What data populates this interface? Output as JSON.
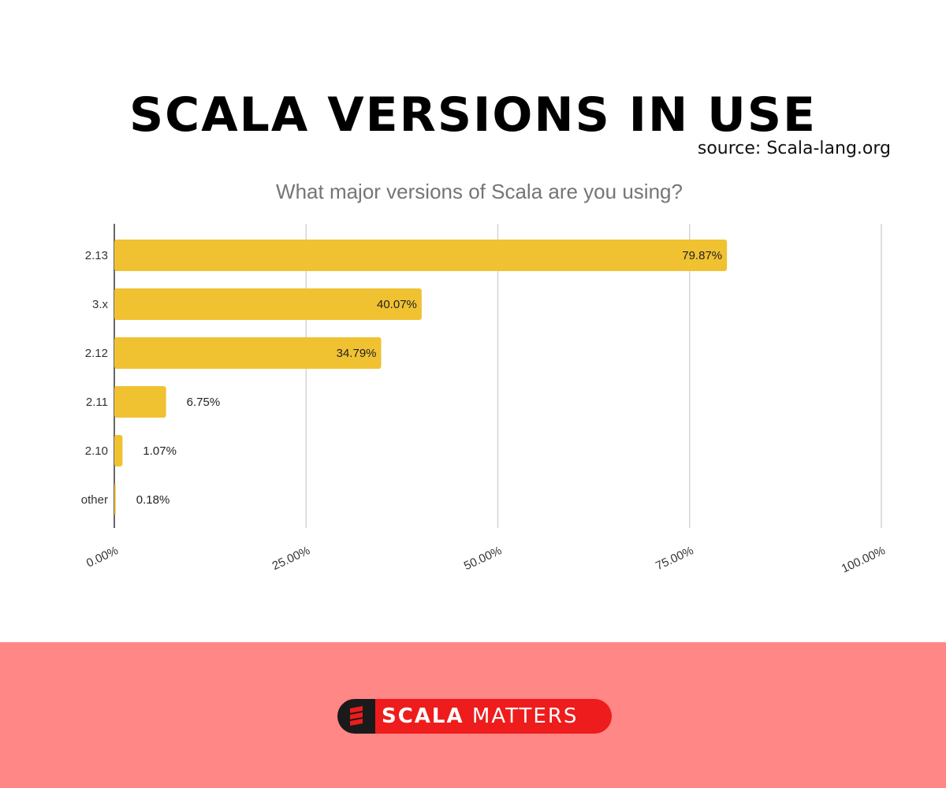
{
  "header": {
    "title": "SCALA VERSIONS IN USE",
    "source": "source: Scala-lang.org"
  },
  "chart_data": {
    "type": "bar",
    "orientation": "horizontal",
    "title": "What major versions of Scala are you using?",
    "categories": [
      "2.13",
      "3.x",
      "2.12",
      "2.11",
      "2.10",
      "other"
    ],
    "values": [
      79.87,
      40.07,
      34.79,
      6.75,
      1.07,
      0.18
    ],
    "data_labels": [
      "79.87%",
      "40.07%",
      "34.79%",
      "6.75%",
      "1.07%",
      "0.18%"
    ],
    "xlim": [
      0,
      100
    ],
    "x_ticks": [
      0,
      25,
      50,
      75,
      100
    ],
    "x_tick_labels": [
      "0.00%",
      "25.00%",
      "50.00%",
      "75.00%",
      "100.00%"
    ],
    "grid": "vertical",
    "bar_color": "#f0c232"
  },
  "footer": {
    "brand_bold": "SCALA",
    "brand_rest": "MATTERS",
    "brand_color": "#ee1c1c",
    "background_color": "#ff8786"
  }
}
